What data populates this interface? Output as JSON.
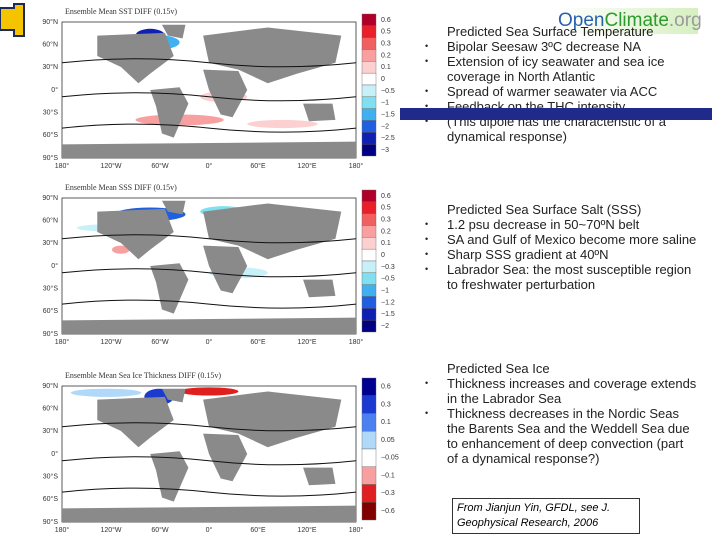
{
  "logo": {
    "parts": [
      "Open",
      "Climate",
      ".org"
    ]
  },
  "lat_labels": [
    "90°N",
    "60°N",
    "30°N",
    "0°",
    "30°S",
    "60°S",
    "90°S"
  ],
  "lon_labels": [
    "180°",
    "120°W",
    "60°W",
    "0°",
    "60°E",
    "120°E",
    "180°"
  ],
  "maps": [
    {
      "title": "Ensemble Mean SST DIFF (0.15v)",
      "colorbar": [
        "0.6",
        "0.5",
        "0.3",
        "0.2",
        "0.1",
        "0",
        "−0.5",
        "−1",
        "−1.5",
        "−2",
        "−2.5",
        "−3"
      ]
    },
    {
      "title": "Ensemble Mean SSS DIFF (0.15v)",
      "colorbar": [
        "0.6",
        "0.5",
        "0.3",
        "0.2",
        "0.1",
        "0",
        "−0.3",
        "−0.5",
        "−1",
        "−1.2",
        "−1.5",
        "−2"
      ]
    },
    {
      "title": "Ensemble Mean Sea Ice Thickness DIFF (0.15v)",
      "colorbar": [
        "0.6",
        "0.3",
        "0.1",
        "0.05",
        "−0.05",
        "−0.1",
        "−0.3",
        "−0.6"
      ]
    }
  ],
  "sections": [
    {
      "title": "Predicted Sea Surface Temperature",
      "bullets": [
        "Bipolar Seesaw 3ºC decrease NA",
        "Extension of icy seawater and sea ice coverage in North Atlantic",
        "Spread of warmer seawater via ACC",
        "Feedback on the THC intensity",
        "(This dipole has the characteristic of a dynamical response)"
      ]
    },
    {
      "title": "Predicted Sea Surface Salt (SSS)",
      "bullets": [
        "1.2 psu decrease in 50~70ºN belt",
        "SA and Gulf of Mexico become more saline",
        "Sharp SSS gradient at 40ºN",
        "Labrador Sea: the most susceptible region to freshwater perturbation"
      ]
    },
    {
      "title": "Predicted Sea Ice",
      "bullets": [
        "Thickness increases and coverage extends in the Labrador Sea",
        "Thickness decreases in the Nordic Seas the Barents Sea and the Weddell Sea due to enhancement of deep convection (part of a dynamical response?)"
      ]
    }
  ],
  "citation": "From Jianjun Yin, GFDL, see J. Geophysical Research, 2006"
}
